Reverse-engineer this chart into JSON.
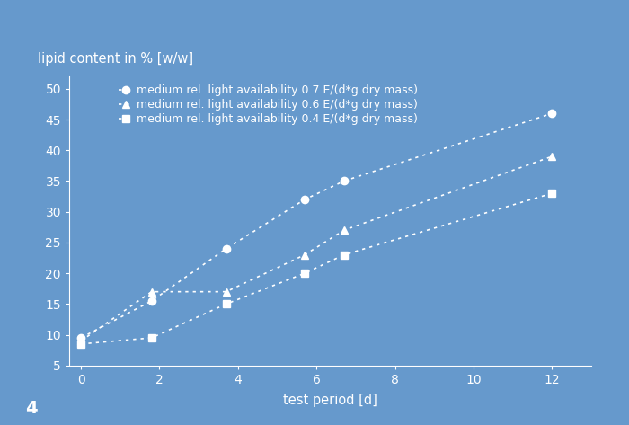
{
  "background_color": "#6699CC",
  "line_color": "white",
  "ylabel": "lipid content in % [w/w]",
  "xlabel": "test period [d]",
  "footnote": "4",
  "series": [
    {
      "label": "medium rel. light availability 0.7 E/(d*g dry mass)",
      "x": [
        0,
        1.8,
        3.7,
        5.7,
        6.7,
        12.0
      ],
      "y": [
        9.5,
        15.5,
        24.0,
        32.0,
        35.0,
        46.0
      ],
      "marker": "o",
      "linestyle": ":"
    },
    {
      "label": "medium rel. light availability 0.6 E/(d*g dry mass)",
      "x": [
        0,
        1.8,
        3.7,
        5.7,
        6.7,
        12.0
      ],
      "y": [
        9.0,
        17.0,
        17.0,
        23.0,
        27.0,
        39.0
      ],
      "marker": "^",
      "linestyle": ":"
    },
    {
      "label": "medium rel. light availability 0.4 E/(d*g dry mass)",
      "x": [
        0,
        1.8,
        3.7,
        5.7,
        6.7,
        12.0
      ],
      "y": [
        8.5,
        9.5,
        15.0,
        20.0,
        23.0,
        33.0
      ],
      "marker": "s",
      "linestyle": ":"
    }
  ],
  "xlim": [
    -0.3,
    13
  ],
  "ylim": [
    5,
    52
  ],
  "xticks": [
    0,
    2,
    4,
    6,
    8,
    10,
    12
  ],
  "yticks": [
    5,
    10,
    15,
    20,
    25,
    30,
    35,
    40,
    45,
    50
  ],
  "label_fontsize": 10,
  "tick_fontsize": 10,
  "legend_fontsize": 9,
  "footnote_fontsize": 14,
  "ylabel_fontsize": 10.5,
  "xlabel_fontsize": 10.5
}
